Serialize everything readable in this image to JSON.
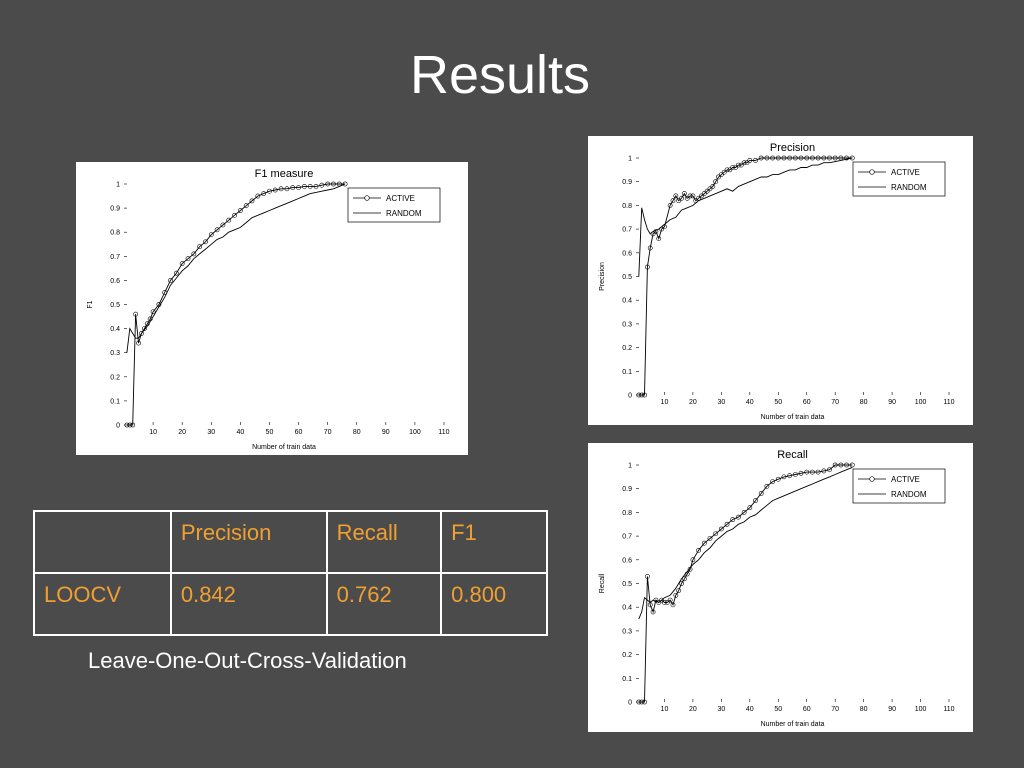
{
  "slide": {
    "title": "Results"
  },
  "table": {
    "headers": [
      "",
      "Precision",
      "Recall",
      "F1"
    ],
    "rows": [
      [
        "LOOCV",
        "0.842",
        "0.762",
        "0.800"
      ]
    ]
  },
  "caption": "Leave-One-Out-Cross-Validation",
  "colors": {
    "background": "#4b4b4b",
    "table_text": "#f0a030",
    "plot_line": "#000000"
  },
  "chart_data": [
    {
      "id": "f1",
      "type": "line",
      "title": "F1 measure",
      "xlabel": "Number of train data",
      "ylabel": "F1",
      "xlim": [
        0,
        110
      ],
      "ylim": [
        0,
        1
      ],
      "xticks": [
        10,
        20,
        30,
        40,
        50,
        60,
        70,
        80,
        90,
        100,
        110
      ],
      "yticks": [
        0,
        0.1,
        0.2,
        0.3,
        0.4,
        0.5,
        0.6,
        0.7,
        0.8,
        0.9,
        1
      ],
      "ytick_labels": [
        "0",
        "0.1",
        "0.2",
        "0.3",
        "0.4",
        "0.5",
        "0.6",
        "0.7",
        "0.8",
        "0.9",
        "1"
      ],
      "legend": {
        "entries": [
          "ACTIVE",
          "RANDOM"
        ],
        "placement": "top-right"
      },
      "series": [
        {
          "name": "ACTIVE",
          "marker": "circle",
          "x": [
            1,
            2,
            3,
            4,
            5,
            6,
            7,
            8,
            9,
            10,
            12,
            14,
            16,
            18,
            20,
            22,
            24,
            26,
            28,
            30,
            32,
            34,
            36,
            38,
            40,
            42,
            44,
            46,
            48,
            50,
            52,
            54,
            56,
            58,
            60,
            62,
            64,
            66,
            68,
            70,
            72,
            74,
            76
          ],
          "y": [
            0,
            0,
            0,
            0.46,
            0.34,
            0.38,
            0.4,
            0.42,
            0.44,
            0.47,
            0.5,
            0.55,
            0.6,
            0.63,
            0.67,
            0.69,
            0.71,
            0.74,
            0.76,
            0.79,
            0.81,
            0.83,
            0.85,
            0.87,
            0.89,
            0.91,
            0.93,
            0.95,
            0.96,
            0.97,
            0.975,
            0.98,
            0.98,
            0.985,
            0.985,
            0.99,
            0.99,
            0.99,
            0.995,
            1,
            1,
            1,
            1
          ]
        },
        {
          "name": "RANDOM",
          "x": [
            1,
            2,
            3,
            4,
            5,
            6,
            8,
            10,
            12,
            14,
            16,
            18,
            20,
            22,
            24,
            26,
            28,
            30,
            32,
            34,
            36,
            38,
            40,
            42,
            44,
            46,
            48,
            50,
            52,
            54,
            56,
            58,
            60,
            62,
            64,
            66,
            68,
            70,
            72,
            74,
            76
          ],
          "y": [
            0.3,
            0.4,
            0.38,
            0.36,
            0.36,
            0.38,
            0.41,
            0.45,
            0.49,
            0.53,
            0.58,
            0.61,
            0.64,
            0.66,
            0.69,
            0.71,
            0.73,
            0.75,
            0.77,
            0.78,
            0.8,
            0.81,
            0.82,
            0.84,
            0.86,
            0.87,
            0.88,
            0.89,
            0.9,
            0.91,
            0.92,
            0.93,
            0.94,
            0.95,
            0.96,
            0.965,
            0.97,
            0.975,
            0.98,
            0.99,
            1
          ]
        }
      ]
    },
    {
      "id": "precision",
      "type": "line",
      "title": "Precision",
      "xlabel": "Number of train data",
      "ylabel": "Precision",
      "xlim": [
        0,
        110
      ],
      "ylim": [
        0,
        1
      ],
      "xticks": [
        10,
        20,
        30,
        40,
        50,
        60,
        70,
        80,
        90,
        100,
        110
      ],
      "yticks": [
        0,
        0.1,
        0.2,
        0.3,
        0.4,
        0.5,
        0.6,
        0.7,
        0.8,
        0.9,
        1
      ],
      "ytick_labels": [
        "0",
        "0.1",
        "0.2",
        "0.3",
        "0.4",
        "0.5",
        "0.6",
        "0.7",
        "0.8",
        "0.9",
        "1"
      ],
      "legend": {
        "entries": [
          "ACTIVE",
          "RANDOM"
        ],
        "placement": "top-right"
      },
      "series": [
        {
          "name": "ACTIVE",
          "marker": "circle",
          "x": [
            1,
            2,
            3,
            4,
            5,
            6,
            7,
            8,
            9,
            10,
            12,
            13,
            14,
            15,
            16,
            17,
            18,
            19,
            20,
            21,
            22,
            23,
            24,
            25,
            26,
            27,
            28,
            29,
            30,
            31,
            32,
            33,
            34,
            35,
            36,
            37,
            38,
            39,
            40,
            42,
            44,
            46,
            48,
            50,
            52,
            54,
            56,
            58,
            60,
            62,
            64,
            66,
            68,
            70,
            72,
            74,
            76
          ],
          "y": [
            0,
            0,
            0,
            0.54,
            0.62,
            0.68,
            0.69,
            0.66,
            0.7,
            0.71,
            0.8,
            0.82,
            0.84,
            0.82,
            0.83,
            0.85,
            0.83,
            0.84,
            0.84,
            0.82,
            0.83,
            0.84,
            0.85,
            0.86,
            0.87,
            0.88,
            0.9,
            0.92,
            0.93,
            0.94,
            0.95,
            0.95,
            0.96,
            0.96,
            0.97,
            0.97,
            0.98,
            0.98,
            0.99,
            0.99,
            1,
            1,
            1,
            1,
            1,
            1,
            1,
            1,
            1,
            1,
            1,
            1,
            1,
            1,
            1,
            1,
            1
          ]
        },
        {
          "name": "RANDOM",
          "x": [
            1,
            2,
            3,
            4,
            5,
            6,
            8,
            10,
            12,
            14,
            16,
            18,
            20,
            22,
            24,
            26,
            28,
            30,
            32,
            34,
            36,
            38,
            40,
            42,
            44,
            46,
            48,
            50,
            52,
            54,
            56,
            58,
            60,
            62,
            64,
            66,
            68,
            70,
            72,
            74,
            76
          ],
          "y": [
            0.5,
            0.79,
            0.74,
            0.7,
            0.68,
            0.69,
            0.7,
            0.72,
            0.74,
            0.75,
            0.78,
            0.79,
            0.8,
            0.82,
            0.83,
            0.84,
            0.85,
            0.86,
            0.87,
            0.86,
            0.88,
            0.89,
            0.9,
            0.91,
            0.92,
            0.92,
            0.93,
            0.93,
            0.94,
            0.95,
            0.95,
            0.96,
            0.96,
            0.97,
            0.97,
            0.98,
            0.98,
            0.985,
            0.99,
            0.995,
            1
          ]
        }
      ]
    },
    {
      "id": "recall",
      "type": "line",
      "title": "Recall",
      "xlabel": "Number of train data",
      "ylabel": "Recall",
      "xlim": [
        0,
        110
      ],
      "ylim": [
        0,
        1
      ],
      "xticks": [
        10,
        20,
        30,
        40,
        50,
        60,
        70,
        80,
        90,
        100,
        110
      ],
      "yticks": [
        0,
        0.1,
        0.2,
        0.3,
        0.4,
        0.5,
        0.6,
        0.7,
        0.8,
        0.9,
        1
      ],
      "ytick_labels": [
        "0",
        "0.1",
        "0.2",
        "0.3",
        "0.4",
        "0.5",
        "0.6",
        "0.7",
        "0.8",
        "0.9",
        "1"
      ],
      "legend": {
        "entries": [
          "ACTIVE",
          "RANDOM"
        ],
        "placement": "top-right"
      },
      "series": [
        {
          "name": "ACTIVE",
          "marker": "circle",
          "x": [
            1,
            2,
            3,
            4,
            5,
            6,
            7,
            8,
            9,
            10,
            11,
            12,
            13,
            14,
            15,
            16,
            17,
            18,
            19,
            20,
            22,
            24,
            26,
            28,
            30,
            32,
            34,
            36,
            38,
            40,
            42,
            44,
            46,
            48,
            50,
            52,
            54,
            56,
            58,
            60,
            62,
            64,
            66,
            68,
            70,
            72,
            74,
            76
          ],
          "y": [
            0,
            0,
            0,
            0.53,
            0.41,
            0.38,
            0.43,
            0.42,
            0.43,
            0.42,
            0.42,
            0.43,
            0.41,
            0.45,
            0.47,
            0.5,
            0.52,
            0.54,
            0.56,
            0.6,
            0.64,
            0.67,
            0.69,
            0.71,
            0.73,
            0.75,
            0.77,
            0.78,
            0.8,
            0.82,
            0.85,
            0.88,
            0.91,
            0.93,
            0.94,
            0.95,
            0.955,
            0.96,
            0.965,
            0.97,
            0.97,
            0.97,
            0.975,
            0.98,
            1,
            1,
            1,
            1
          ]
        },
        {
          "name": "RANDOM",
          "x": [
            1,
            2,
            3,
            4,
            5,
            6,
            8,
            10,
            12,
            14,
            16,
            18,
            20,
            22,
            24,
            26,
            28,
            30,
            32,
            34,
            36,
            38,
            40,
            42,
            44,
            46,
            48,
            50,
            52,
            54,
            56,
            58,
            60,
            62,
            64,
            66,
            68,
            70,
            72,
            74,
            76
          ],
          "y": [
            0.35,
            0.38,
            0.44,
            0.43,
            0.42,
            0.43,
            0.42,
            0.44,
            0.45,
            0.48,
            0.52,
            0.55,
            0.58,
            0.6,
            0.63,
            0.65,
            0.68,
            0.7,
            0.72,
            0.73,
            0.75,
            0.76,
            0.78,
            0.79,
            0.81,
            0.83,
            0.85,
            0.86,
            0.87,
            0.88,
            0.89,
            0.9,
            0.91,
            0.92,
            0.93,
            0.94,
            0.95,
            0.96,
            0.97,
            0.98,
            0.99
          ]
        }
      ]
    }
  ]
}
